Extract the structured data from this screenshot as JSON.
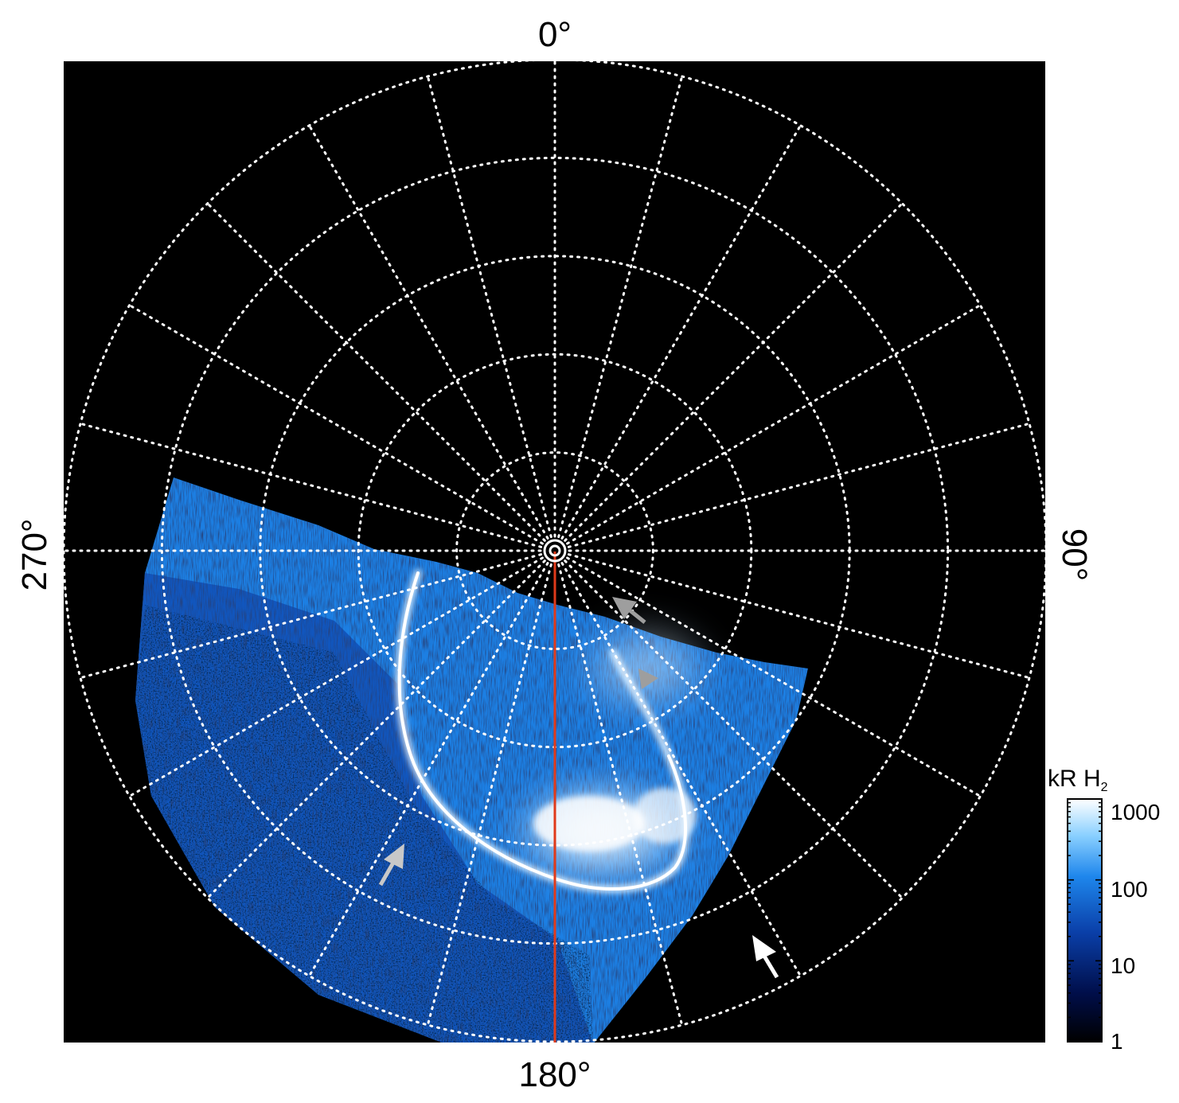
{
  "figure": {
    "type": "polar auroral projection (Jupiter UV aurora)",
    "longitude_labels": {
      "top": "0°",
      "right": "90°",
      "bottom": "180°",
      "left": "270°"
    },
    "grid": {
      "style": "dotted",
      "color": "#ffffff",
      "meridian_spacing_deg": 15,
      "latitude_circles": 5
    },
    "reference_meridian_color": "#e03a1a",
    "background_color": "#000000"
  },
  "colorbar": {
    "title_main": "kR H",
    "title_sub": "2",
    "scale": "log",
    "range": [
      1,
      1000
    ],
    "tick_labels": [
      "1000",
      "100",
      "10",
      "1"
    ],
    "colors": [
      "#000000",
      "#000e4a",
      "#0a3fa8",
      "#1e86ec",
      "#8ad0ff",
      "#ffffff"
    ]
  },
  "arrows": [
    {
      "name": "white-arrow-lower-right",
      "color": "#ffffff"
    },
    {
      "name": "grey-arrow-lower-left",
      "color": "#c8c8c8"
    },
    {
      "name": "grey-arrowhead-upper",
      "color": "#9e9e9e"
    },
    {
      "name": "grey-arrowhead-middle",
      "color": "#9e9e9e"
    }
  ]
}
